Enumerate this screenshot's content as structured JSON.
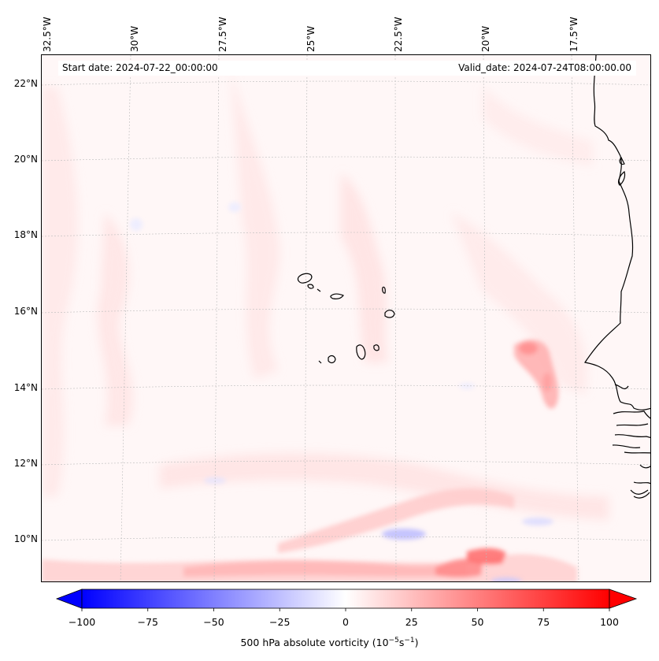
{
  "map": {
    "start_date": "Start date: 2024-07-22_00:00:00",
    "valid_date": "Valid_date: 2024-07-24T08:00:00.00",
    "longitude_labels": [
      "32.5°W",
      "30°W",
      "27.5°W",
      "25°W",
      "22.5°W",
      "20°W",
      "17.5°W"
    ],
    "latitude_labels": [
      "22°N",
      "20°N",
      "18°N",
      "16°N",
      "14°N",
      "12°N",
      "10°N"
    ],
    "features": [
      "coastline-west-africa",
      "cape-verde-islands"
    ]
  },
  "colorbar": {
    "label_prefix": "500 hPa absolute vorticity (10",
    "label_exp1": "−5",
    "label_mid": "s",
    "label_exp2": "−1",
    "label_suffix": ")",
    "ticks": [
      "−100",
      "−75",
      "−50",
      "−25",
      "0",
      "25",
      "50",
      "75",
      "100"
    ],
    "min": -100,
    "max": 100,
    "colors": {
      "negative": "#0000ff",
      "zero": "#ffffff",
      "positive": "#ff0000"
    }
  }
}
